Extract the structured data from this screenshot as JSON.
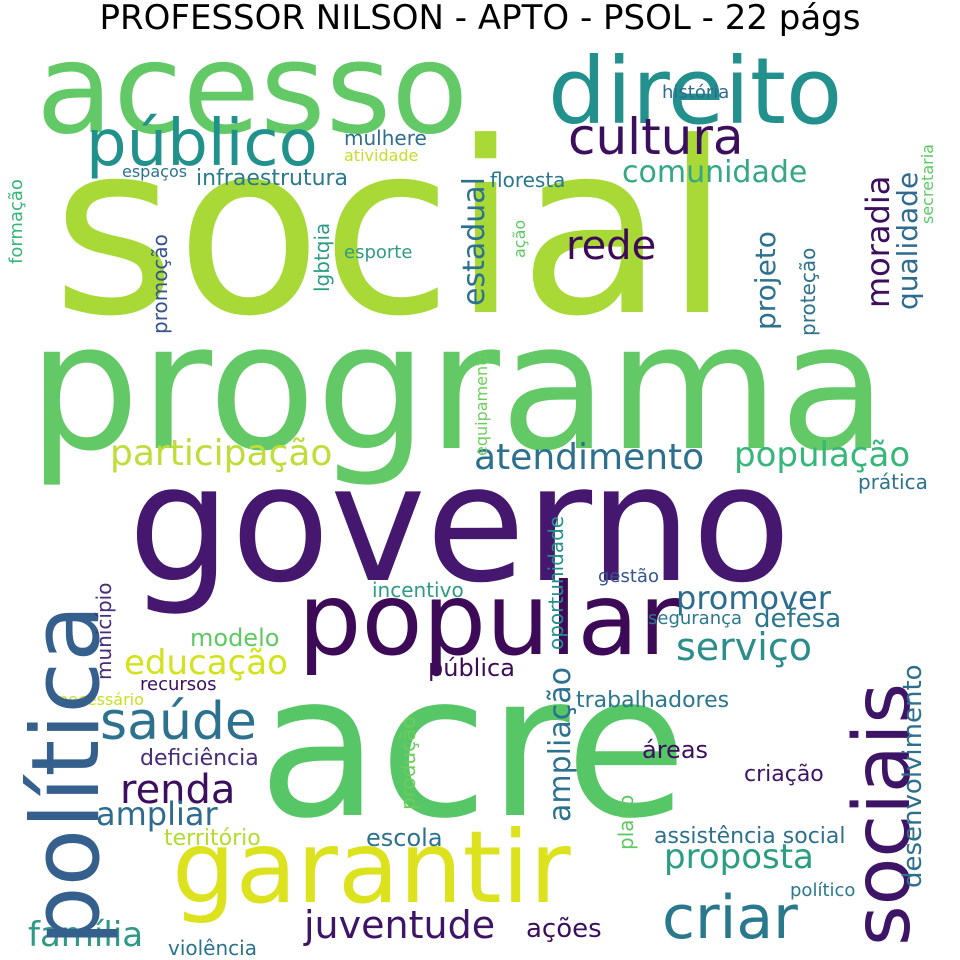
{
  "title": "PROFESSOR NILSON - APTO - PSOL - 22 págs",
  "colors": {
    "background": "#ffffff",
    "title": "#000000"
  },
  "words": [
    "social",
    "programa",
    "governo",
    "acre",
    "acesso",
    "direito",
    "popular",
    "garantir",
    "sociais",
    "política",
    "público",
    "cultura",
    "saúde",
    "criar",
    "juventude",
    "família",
    "atendimento",
    "participação",
    "população",
    "proposta",
    "educação",
    "serviço",
    "promover",
    "renda",
    "ampliar",
    "comunidade",
    "rede",
    "estadual",
    "moradia",
    "qualidade",
    "projeto",
    "infraestrutura",
    "mulhere",
    "floresta",
    "esporte",
    "ações",
    "escola",
    "pública",
    "defesa",
    "segurança",
    "modelo",
    "deficiência",
    "território",
    "violência",
    "trabalhadores",
    "assistência social",
    "desenvolvimento",
    "ampliação",
    "oportunidade",
    "município",
    "promoção",
    "lgbtqia",
    "proteção",
    "formação",
    "prática",
    "criação",
    "áreas",
    "plano",
    "produção",
    "incentivo",
    "gestão",
    "recursos",
    "necessário",
    "político",
    "história",
    "atividade",
    "espaços",
    "ação",
    "equipamento",
    "secretaria"
  ]
}
